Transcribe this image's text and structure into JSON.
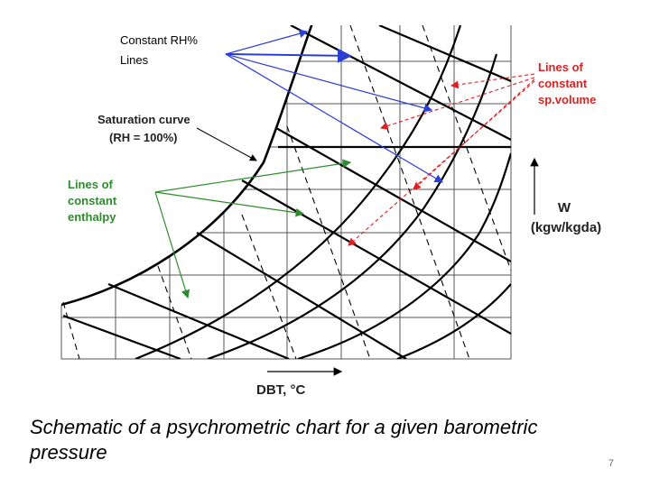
{
  "labels": {
    "rh_lines": [
      "Constant RH%",
      "Lines"
    ],
    "saturation": [
      "Saturation curve",
      "(RH = 100%)"
    ],
    "enthalpy": [
      "Lines of",
      "constant",
      "enthalpy"
    ],
    "sp_volume": [
      "Lines of",
      "constant",
      "sp.volume"
    ],
    "w_axis": [
      "W",
      "(kgw/kgda)"
    ],
    "dbt_axis": "DBT, °C"
  },
  "caption": "Schematic of a psychrometric chart for a given barometric pressure",
  "page_number": "7",
  "colors": {
    "rh_arrows": "#2b3fd6",
    "enthalpy_label": "#2e8b2e",
    "sp_volume_label": "#e02020",
    "lines": "#000000",
    "grid": "#555555"
  }
}
